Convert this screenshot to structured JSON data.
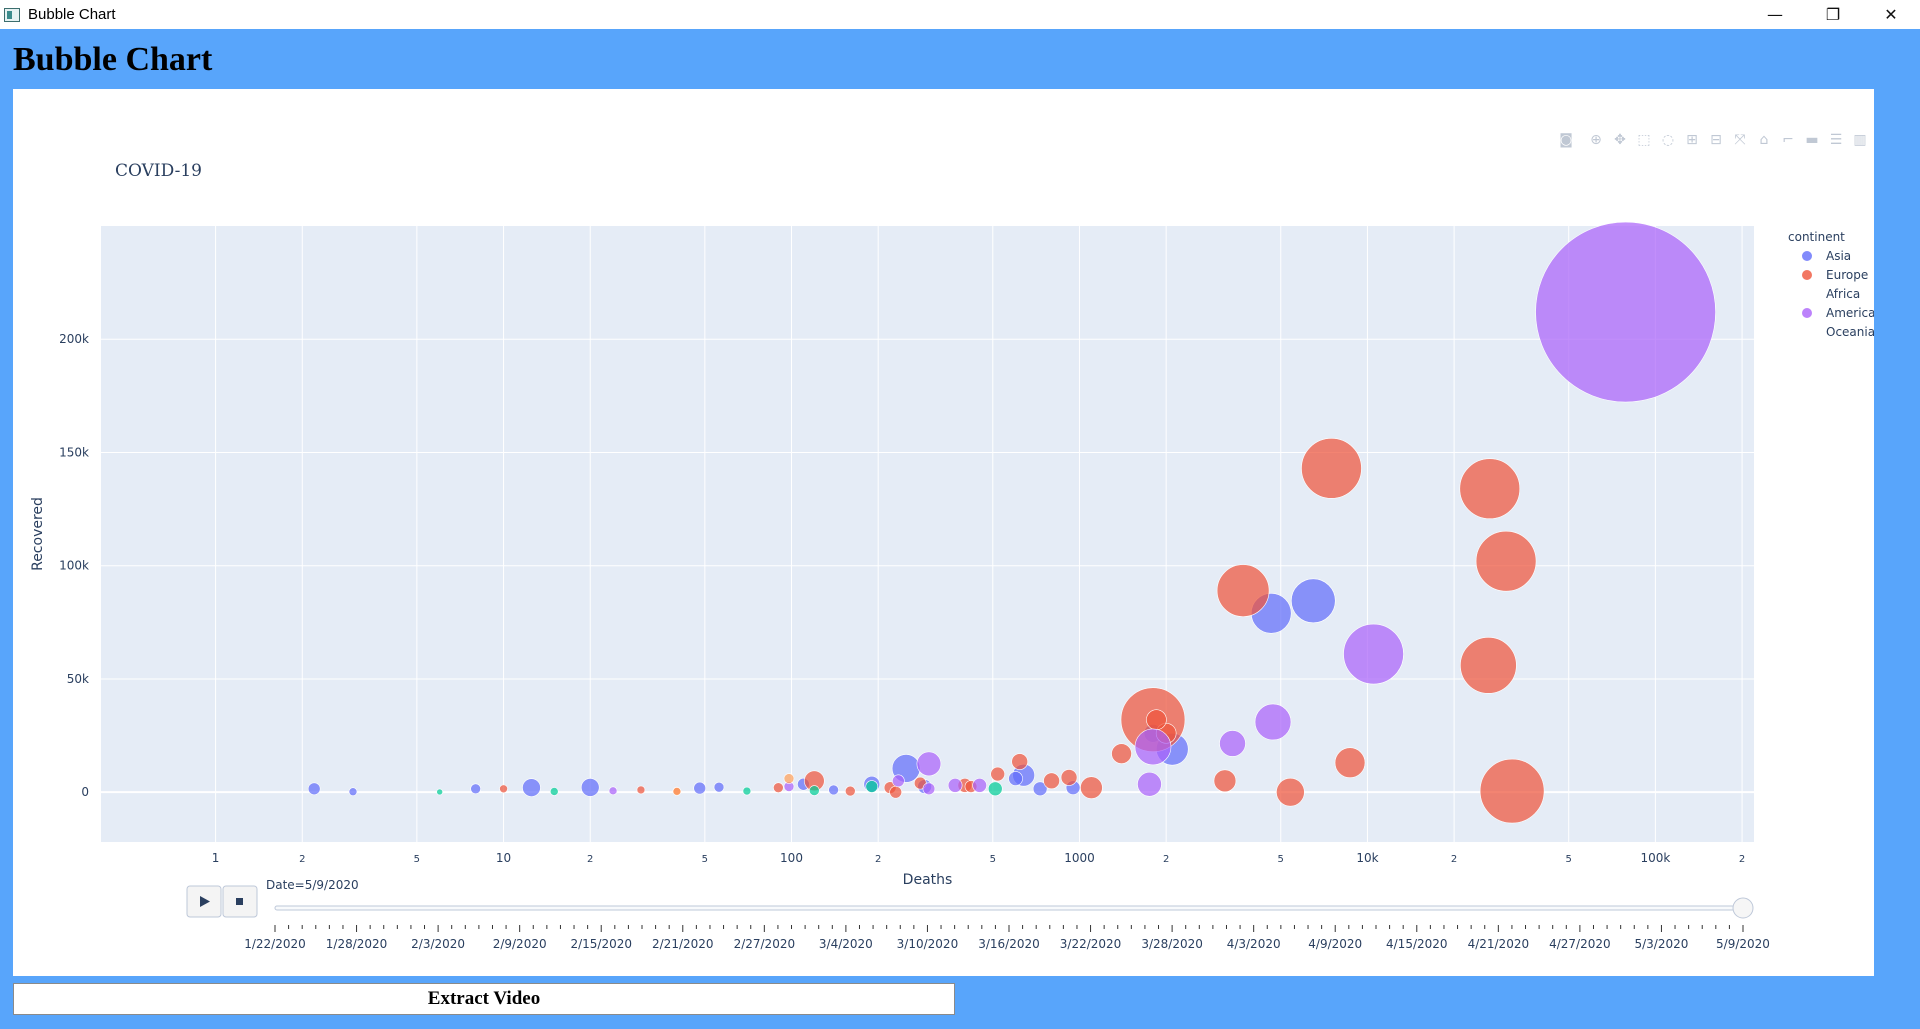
{
  "window": {
    "title": "Bubble Chart",
    "minimize": "—",
    "restore": "❐",
    "close": "✕"
  },
  "app": {
    "heading": "Bubble Chart",
    "extract_button": "Extract Video"
  },
  "modebar": [
    "camera-icon",
    "zoom-icon",
    "pan-icon",
    "box-select-icon",
    "lasso-icon",
    "zoom-in-icon",
    "zoom-out-icon",
    "autoscale-icon",
    "reset-axes-icon",
    "spike-lines-icon",
    "hover-closest-icon",
    "hover-compare-icon",
    "plotly-logo-icon"
  ],
  "slider": {
    "current_label": "Date=5/9/2020",
    "play_icon": "play-icon",
    "stop_icon": "stop-icon",
    "value_fraction": 1.0,
    "ticks": [
      "1/22/2020",
      "1/28/2020",
      "2/3/2020",
      "2/9/2020",
      "2/15/2020",
      "2/21/2020",
      "2/27/2020",
      "3/4/2020",
      "3/10/2020",
      "3/16/2020",
      "3/22/2020",
      "3/28/2020",
      "4/3/2020",
      "4/9/2020",
      "4/15/2020",
      "4/21/2020",
      "4/27/2020",
      "5/3/2020",
      "5/9/2020"
    ]
  },
  "chart_data": {
    "type": "scatter",
    "title": "COVID-19",
    "xlabel": "Deaths",
    "ylabel": "Recovered",
    "xscale": "log",
    "xlim": [
      0.4,
      220000
    ],
    "ylim": [
      -22000,
      250000
    ],
    "x_ticks": [
      {
        "v": 1,
        "t": "1"
      },
      {
        "v": 2,
        "t": "2"
      },
      {
        "v": 5,
        "t": "5"
      },
      {
        "v": 10,
        "t": "10"
      },
      {
        "v": 20,
        "t": "2"
      },
      {
        "v": 50,
        "t": "5"
      },
      {
        "v": 100,
        "t": "100"
      },
      {
        "v": 200,
        "t": "2"
      },
      {
        "v": 500,
        "t": "5"
      },
      {
        "v": 1000,
        "t": "1000"
      },
      {
        "v": 2000,
        "t": "2"
      },
      {
        "v": 5000,
        "t": "5"
      },
      {
        "v": 10000,
        "t": "10k"
      },
      {
        "v": 20000,
        "t": "2"
      },
      {
        "v": 50000,
        "t": "5"
      },
      {
        "v": 100000,
        "t": "100k"
      },
      {
        "v": 200000,
        "t": "2"
      }
    ],
    "y_ticks": [
      {
        "v": 0,
        "t": "0"
      },
      {
        "v": 50000,
        "t": "50k"
      },
      {
        "v": 100000,
        "t": "100k"
      },
      {
        "v": 150000,
        "t": "150k"
      },
      {
        "v": 200000,
        "t": "200k"
      }
    ],
    "grid": true,
    "legend": {
      "title": "continent",
      "placement": "right"
    },
    "colors": {
      "Asia": "#636efa",
      "Europe": "#ef553b",
      "Africa": "#00cc96",
      "Americas": "#ab63fa",
      "Oceania": "#ffa15a"
    },
    "series": [
      {
        "name": "Asia",
        "points": [
          [
            4633,
            79000,
            20
          ],
          [
            6486,
            84500,
            22
          ],
          [
            2100,
            19000,
            16
          ],
          [
            250,
            10500,
            14
          ],
          [
            640,
            7500,
            11
          ],
          [
            1800,
            26000,
            9
          ],
          [
            110,
            3500,
            6
          ],
          [
            290,
            2500,
            7
          ],
          [
            950,
            2000,
            7
          ],
          [
            2.2,
            1500,
            6
          ],
          [
            12.5,
            2000,
            9
          ],
          [
            20,
            2100,
            9
          ],
          [
            48,
            1800,
            6
          ],
          [
            190,
            3500,
            8
          ],
          [
            730,
            1500,
            7
          ],
          [
            8,
            1500,
            5
          ],
          [
            56,
            2200,
            5
          ],
          [
            3,
            200,
            4
          ],
          [
            140,
            1000,
            5
          ],
          [
            600,
            6000,
            7
          ]
        ]
      },
      {
        "name": "Europe",
        "points": [
          [
            7500,
            143000,
            30
          ],
          [
            26600,
            134000,
            30
          ],
          [
            30300,
            102000,
            30
          ],
          [
            26300,
            56000,
            28
          ],
          [
            31800,
            500,
            32
          ],
          [
            3700,
            89000,
            26
          ],
          [
            1800,
            32000,
            32
          ],
          [
            8700,
            13000,
            15
          ],
          [
            5400,
            0,
            14
          ],
          [
            3200,
            5000,
            11
          ],
          [
            1400,
            17000,
            10
          ],
          [
            1100,
            2000,
            11
          ],
          [
            920,
            6500,
            8
          ],
          [
            800,
            5000,
            8
          ],
          [
            620,
            13500,
            8
          ],
          [
            520,
            8000,
            7
          ],
          [
            400,
            3000,
            7
          ],
          [
            280,
            4000,
            6
          ],
          [
            220,
            2000,
            6
          ],
          [
            160,
            500,
            5
          ],
          [
            120,
            5000,
            10
          ],
          [
            90,
            2000,
            5
          ],
          [
            40,
            500,
            4
          ],
          [
            30,
            1000,
            4
          ],
          [
            10,
            1500,
            4
          ],
          [
            2000,
            26000,
            10
          ],
          [
            420,
            2500,
            6
          ],
          [
            1850,
            32000,
            10
          ],
          [
            230,
            0,
            6
          ]
        ]
      },
      {
        "name": "Africa",
        "points": [
          [
            190,
            2500,
            6
          ],
          [
            510,
            1500,
            7
          ],
          [
            120,
            700,
            5
          ],
          [
            70,
            500,
            4
          ],
          [
            15,
            300,
            4
          ],
          [
            6,
            100,
            3
          ]
        ]
      },
      {
        "name": "Americas",
        "points": [
          [
            78800,
            212000,
            90
          ],
          [
            10500,
            61000,
            30
          ],
          [
            4700,
            31000,
            18
          ],
          [
            3400,
            21500,
            13
          ],
          [
            1800,
            20000,
            18
          ],
          [
            1750,
            3500,
            12
          ],
          [
            300,
            12500,
            12
          ],
          [
            300,
            1500,
            6
          ],
          [
            450,
            3000,
            7
          ],
          [
            370,
            3000,
            7
          ],
          [
            24,
            600,
            4
          ],
          [
            98,
            2500,
            5
          ],
          [
            235,
            5000,
            6
          ]
        ]
      },
      {
        "name": "Oceania",
        "points": [
          [
            98,
            6000,
            5
          ],
          [
            40,
            300,
            4
          ]
        ]
      }
    ]
  }
}
